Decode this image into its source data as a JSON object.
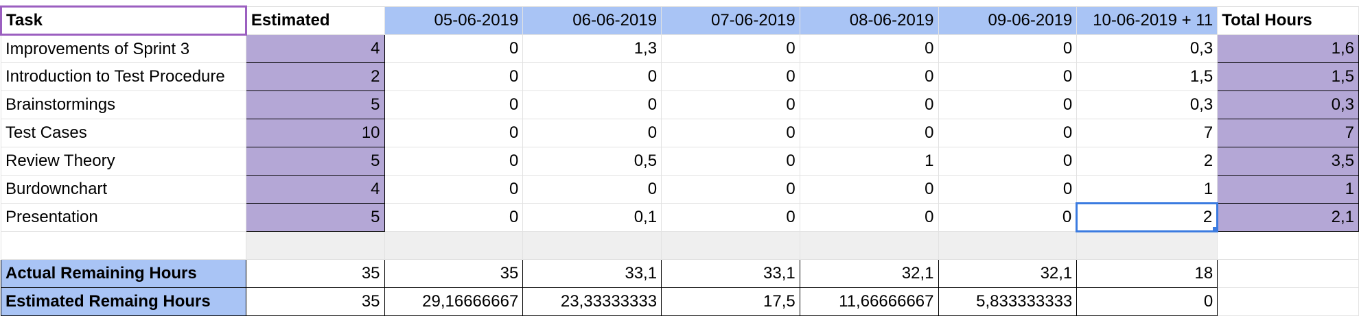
{
  "header": {
    "task": "Task",
    "estimated": "Estimated",
    "dates": [
      "05-06-2019",
      "06-06-2019",
      "07-06-2019",
      "08-06-2019",
      "09-06-2019",
      "10-06-2019 + 11"
    ],
    "total": "Total Hours"
  },
  "rows": [
    {
      "task": "Improvements of Sprint 3",
      "estimated": "4",
      "values": [
        "0",
        "1,3",
        "0",
        "0",
        "0",
        "0,3"
      ],
      "total": "1,6"
    },
    {
      "task": "Introduction to Test Procedure",
      "estimated": "2",
      "values": [
        "0",
        "0",
        "0",
        "0",
        "0",
        "1,5"
      ],
      "total": "1,5"
    },
    {
      "task": "Brainstormings",
      "estimated": "5",
      "values": [
        "0",
        "0",
        "0",
        "0",
        "0",
        "0,3"
      ],
      "total": "0,3"
    },
    {
      "task": "Test Cases",
      "estimated": "10",
      "values": [
        "0",
        "0",
        "0",
        "0",
        "0",
        "7"
      ],
      "total": "7"
    },
    {
      "task": "Review Theory",
      "estimated": "5",
      "values": [
        "0",
        "0,5",
        "0",
        "1",
        "0",
        "2"
      ],
      "total": "3,5"
    },
    {
      "task": "Burdownchart",
      "estimated": "4",
      "values": [
        "0",
        "0",
        "0",
        "0",
        "0",
        "1"
      ],
      "total": "1"
    },
    {
      "task": "Presentation",
      "estimated": "5",
      "values": [
        "0",
        "0,1",
        "0",
        "0",
        "0",
        "2"
      ],
      "total": "2,1"
    }
  ],
  "summary": [
    {
      "label": "Actual Remaining Hours",
      "values": [
        "35",
        "35",
        "33,1",
        "33,1",
        "32,1",
        "32,1",
        "18"
      ]
    },
    {
      "label": "Estimated Remaing Hours",
      "values": [
        "35",
        "29,16666667",
        "23,33333333",
        "17,5",
        "11,66666667",
        "5,833333333",
        "0"
      ]
    }
  ],
  "colors": {
    "date_header_bg": "#a9c4f5",
    "estimated_bg": "#b4a7d6",
    "selection": "#3b7be0",
    "task_header_border": "#9b5fc0"
  }
}
